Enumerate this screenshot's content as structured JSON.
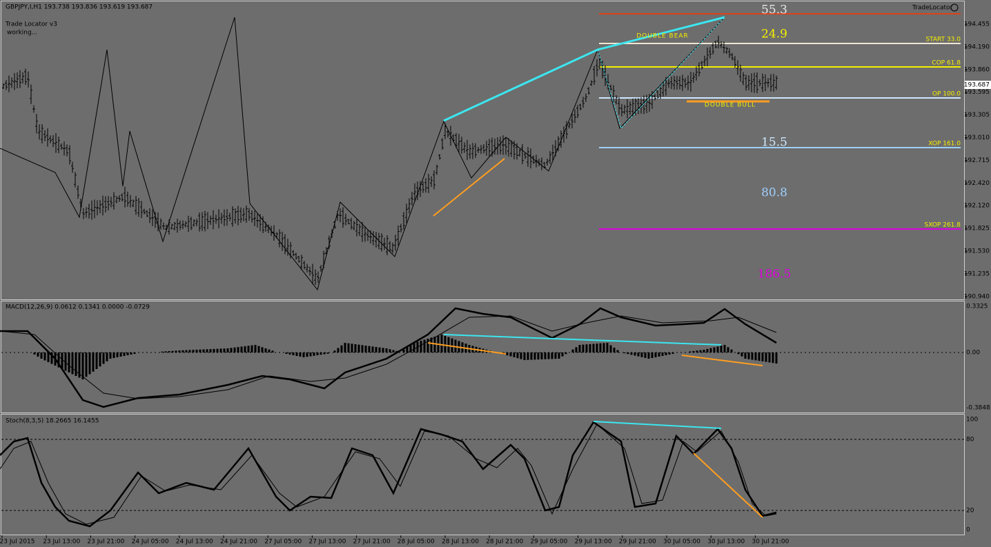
{
  "header": {
    "symbol_line": "GBPJPY,I,H1  193.738 193.836 193.619 193.687",
    "indicator_name": "Trade Locator v3",
    "indicator_status": "working...",
    "brand": "TradeLocator"
  },
  "price_axis": {
    "ticks": [
      "194.455",
      "194.190",
      "193.860",
      "193.595",
      "193.305",
      "193.010",
      "192.715",
      "192.420",
      "192.120",
      "191.825",
      "191.530",
      "191.235",
      "190.940"
    ],
    "current_price": "193.687"
  },
  "levels": [
    {
      "label": "START 33.0"
    },
    {
      "label": "COP 61.8"
    },
    {
      "label": "OP 100.0"
    },
    {
      "label": "XOP 161.0"
    },
    {
      "label": "SXOP 261.8"
    }
  ],
  "big_numbers": [
    "55.3",
    "24.9",
    "15.5",
    "80.8",
    "186.5"
  ],
  "patterns": {
    "bear": "DOUBLE BEAR",
    "bull": "DOUBLE BULL"
  },
  "macd": {
    "title": "MACD(12,26,9) 0.0612 0.1341 0.0000 -0.0729",
    "ticks": [
      "0.3325",
      "0.00",
      "-0.3848"
    ]
  },
  "stoch": {
    "title": "Stoch(8,3,5) 18.2665 16.1455",
    "ticks": [
      "100",
      "80",
      "20",
      "0"
    ]
  },
  "time_axis": [
    "23 Jul 2015",
    "23 Jul 13:00",
    "23 Jul 21:00",
    "24 Jul 05:00",
    "24 Jul 13:00",
    "24 Jul 21:00",
    "27 Jul 05:00",
    "27 Jul 13:00",
    "27 Jul 21:00",
    "28 Jul 05:00",
    "28 Jul 13:00",
    "28 Jul 21:00",
    "29 Jul 05:00",
    "29 Jul 13:00",
    "29 Jul 21:00",
    "30 Jul 05:00",
    "30 Jul 13:00",
    "30 Jul 21:00"
  ]
}
